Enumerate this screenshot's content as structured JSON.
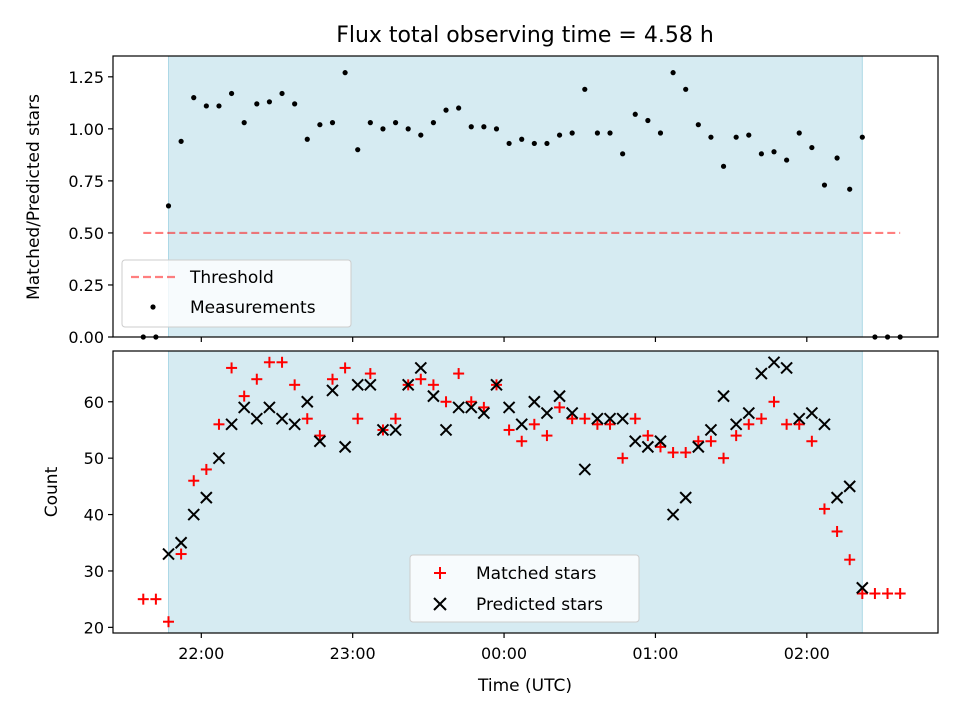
{
  "title": "Flux total observing time = 4.58 h",
  "colors": {
    "shade": "#add8e6",
    "threshold": "#ff0000",
    "measurement": "#000000",
    "matched": "#ff0000",
    "predicted": "#000000"
  },
  "chart_data": [
    {
      "type": "scatter",
      "ylabel": "Matched/Predicted stars",
      "ylim": [
        0,
        1.35
      ],
      "xlim": [
        "21:25",
        "02:52"
      ],
      "yticks": [
        "0.00",
        "0.25",
        "0.50",
        "0.75",
        "1.00",
        "1.25"
      ],
      "observing_window": [
        "21:47",
        "02:22"
      ],
      "legend_position": "lower-left",
      "legend": {
        "threshold": "Threshold",
        "measurements": "Measurements"
      },
      "threshold": {
        "value": 0.5,
        "x_from": "21:37",
        "x_to": "02:37"
      },
      "series": [
        {
          "name": "Measurements",
          "points": [
            [
              "21:37",
              0
            ],
            [
              "21:42",
              0
            ],
            [
              "21:47",
              0.63
            ],
            [
              "21:52",
              0.94
            ],
            [
              "21:57",
              1.15
            ],
            [
              "22:02",
              1.11
            ],
            [
              "22:07",
              1.11
            ],
            [
              "22:12",
              1.17
            ],
            [
              "22:17",
              1.03
            ],
            [
              "22:22",
              1.12
            ],
            [
              "22:27",
              1.13
            ],
            [
              "22:32",
              1.17
            ],
            [
              "22:37",
              1.12
            ],
            [
              "22:42",
              0.95
            ],
            [
              "22:47",
              1.02
            ],
            [
              "22:52",
              1.03
            ],
            [
              "22:57",
              1.27
            ],
            [
              "23:02",
              0.9
            ],
            [
              "23:07",
              1.03
            ],
            [
              "23:12",
              1.0
            ],
            [
              "23:17",
              1.03
            ],
            [
              "23:22",
              1.0
            ],
            [
              "23:27",
              0.97
            ],
            [
              "23:32",
              1.03
            ],
            [
              "23:37",
              1.09
            ],
            [
              "23:42",
              1.1
            ],
            [
              "23:47",
              1.01
            ],
            [
              "23:52",
              1.01
            ],
            [
              "23:57",
              1.0
            ],
            [
              "00:02",
              0.93
            ],
            [
              "00:07",
              0.95
            ],
            [
              "00:12",
              0.93
            ],
            [
              "00:17",
              0.93
            ],
            [
              "00:22",
              0.97
            ],
            [
              "00:27",
              0.98
            ],
            [
              "00:32",
              1.19
            ],
            [
              "00:37",
              0.98
            ],
            [
              "00:42",
              0.98
            ],
            [
              "00:47",
              0.88
            ],
            [
              "00:52",
              1.07
            ],
            [
              "00:57",
              1.04
            ],
            [
              "01:02",
              0.98
            ],
            [
              "01:07",
              1.27
            ],
            [
              "01:12",
              1.19
            ],
            [
              "01:17",
              1.02
            ],
            [
              "01:22",
              0.96
            ],
            [
              "01:27",
              0.82
            ],
            [
              "01:32",
              0.96
            ],
            [
              "01:37",
              0.97
            ],
            [
              "01:42",
              0.88
            ],
            [
              "01:47",
              0.89
            ],
            [
              "01:52",
              0.85
            ],
            [
              "01:57",
              0.98
            ],
            [
              "02:02",
              0.91
            ],
            [
              "02:07",
              0.73
            ],
            [
              "02:12",
              0.86
            ],
            [
              "02:17",
              0.71
            ],
            [
              "02:22",
              0.96
            ],
            [
              "02:27",
              0
            ],
            [
              "02:32",
              0
            ],
            [
              "02:37",
              0
            ]
          ]
        }
      ]
    },
    {
      "type": "scatter",
      "xlabel": "Time (UTC)",
      "ylabel": "Count",
      "ylim": [
        19,
        69
      ],
      "xlim": [
        "21:25",
        "02:52"
      ],
      "xticks": [
        "22:00",
        "23:00",
        "00:00",
        "01:00",
        "02:00"
      ],
      "yticks": [
        "20",
        "30",
        "40",
        "50",
        "60"
      ],
      "observing_window": [
        "21:47",
        "02:22"
      ],
      "legend_position": "lower-center",
      "legend": {
        "matched": "Matched stars",
        "predicted": "Predicted stars"
      },
      "series": [
        {
          "name": "Matched stars",
          "marker": "+",
          "points": [
            [
              "21:37",
              25
            ],
            [
              "21:42",
              25
            ],
            [
              "21:47",
              21
            ],
            [
              "21:52",
              33
            ],
            [
              "21:57",
              46
            ],
            [
              "22:02",
              48
            ],
            [
              "22:07",
              56
            ],
            [
              "22:12",
              66
            ],
            [
              "22:17",
              61
            ],
            [
              "22:22",
              64
            ],
            [
              "22:27",
              67
            ],
            [
              "22:32",
              67
            ],
            [
              "22:37",
              63
            ],
            [
              "22:42",
              57
            ],
            [
              "22:47",
              54
            ],
            [
              "22:52",
              64
            ],
            [
              "22:57",
              66
            ],
            [
              "23:02",
              57
            ],
            [
              "23:07",
              65
            ],
            [
              "23:12",
              55
            ],
            [
              "23:17",
              57
            ],
            [
              "23:22",
              63
            ],
            [
              "23:27",
              64
            ],
            [
              "23:32",
              63
            ],
            [
              "23:37",
              60
            ],
            [
              "23:42",
              65
            ],
            [
              "23:47",
              60
            ],
            [
              "23:52",
              59
            ],
            [
              "23:57",
              63
            ],
            [
              "00:02",
              55
            ],
            [
              "00:07",
              53
            ],
            [
              "00:12",
              56
            ],
            [
              "00:17",
              54
            ],
            [
              "00:22",
              59
            ],
            [
              "00:27",
              57
            ],
            [
              "00:32",
              57
            ],
            [
              "00:37",
              56
            ],
            [
              "00:42",
              56
            ],
            [
              "00:47",
              50
            ],
            [
              "00:52",
              57
            ],
            [
              "00:57",
              54
            ],
            [
              "01:02",
              52
            ],
            [
              "01:07",
              51
            ],
            [
              "01:12",
              51
            ],
            [
              "01:17",
              53
            ],
            [
              "01:22",
              53
            ],
            [
              "01:27",
              50
            ],
            [
              "01:32",
              54
            ],
            [
              "01:37",
              56
            ],
            [
              "01:42",
              57
            ],
            [
              "01:47",
              60
            ],
            [
              "01:52",
              56
            ],
            [
              "01:57",
              56
            ],
            [
              "02:02",
              53
            ],
            [
              "02:07",
              41
            ],
            [
              "02:12",
              37
            ],
            [
              "02:17",
              32
            ],
            [
              "02:22",
              26
            ],
            [
              "02:27",
              26
            ],
            [
              "02:32",
              26
            ],
            [
              "02:37",
              26
            ]
          ]
        },
        {
          "name": "Predicted stars",
          "marker": "x",
          "points": [
            [
              "21:47",
              33
            ],
            [
              "21:52",
              35
            ],
            [
              "21:57",
              40
            ],
            [
              "22:02",
              43
            ],
            [
              "22:07",
              50
            ],
            [
              "22:12",
              56
            ],
            [
              "22:17",
              59
            ],
            [
              "22:22",
              57
            ],
            [
              "22:27",
              59
            ],
            [
              "22:32",
              57
            ],
            [
              "22:37",
              56
            ],
            [
              "22:42",
              60
            ],
            [
              "22:47",
              53
            ],
            [
              "22:52",
              62
            ],
            [
              "22:57",
              52
            ],
            [
              "23:02",
              63
            ],
            [
              "23:07",
              63
            ],
            [
              "23:12",
              55
            ],
            [
              "23:17",
              55
            ],
            [
              "23:22",
              63
            ],
            [
              "23:27",
              66
            ],
            [
              "23:32",
              61
            ],
            [
              "23:37",
              55
            ],
            [
              "23:42",
              59
            ],
            [
              "23:47",
              59
            ],
            [
              "23:52",
              58
            ],
            [
              "23:57",
              63
            ],
            [
              "00:02",
              59
            ],
            [
              "00:07",
              56
            ],
            [
              "00:12",
              60
            ],
            [
              "00:17",
              58
            ],
            [
              "00:22",
              61
            ],
            [
              "00:27",
              58
            ],
            [
              "00:32",
              48
            ],
            [
              "00:37",
              57
            ],
            [
              "00:42",
              57
            ],
            [
              "00:47",
              57
            ],
            [
              "00:52",
              53
            ],
            [
              "00:57",
              52
            ],
            [
              "01:02",
              53
            ],
            [
              "01:07",
              40
            ],
            [
              "01:12",
              43
            ],
            [
              "01:17",
              52
            ],
            [
              "01:22",
              55
            ],
            [
              "01:27",
              61
            ],
            [
              "01:32",
              56
            ],
            [
              "01:37",
              58
            ],
            [
              "01:42",
              65
            ],
            [
              "01:47",
              67
            ],
            [
              "01:52",
              66
            ],
            [
              "01:57",
              57
            ],
            [
              "02:02",
              58
            ],
            [
              "02:07",
              56
            ],
            [
              "02:12",
              43
            ],
            [
              "02:17",
              45
            ],
            [
              "02:22",
              27
            ]
          ]
        }
      ]
    }
  ]
}
